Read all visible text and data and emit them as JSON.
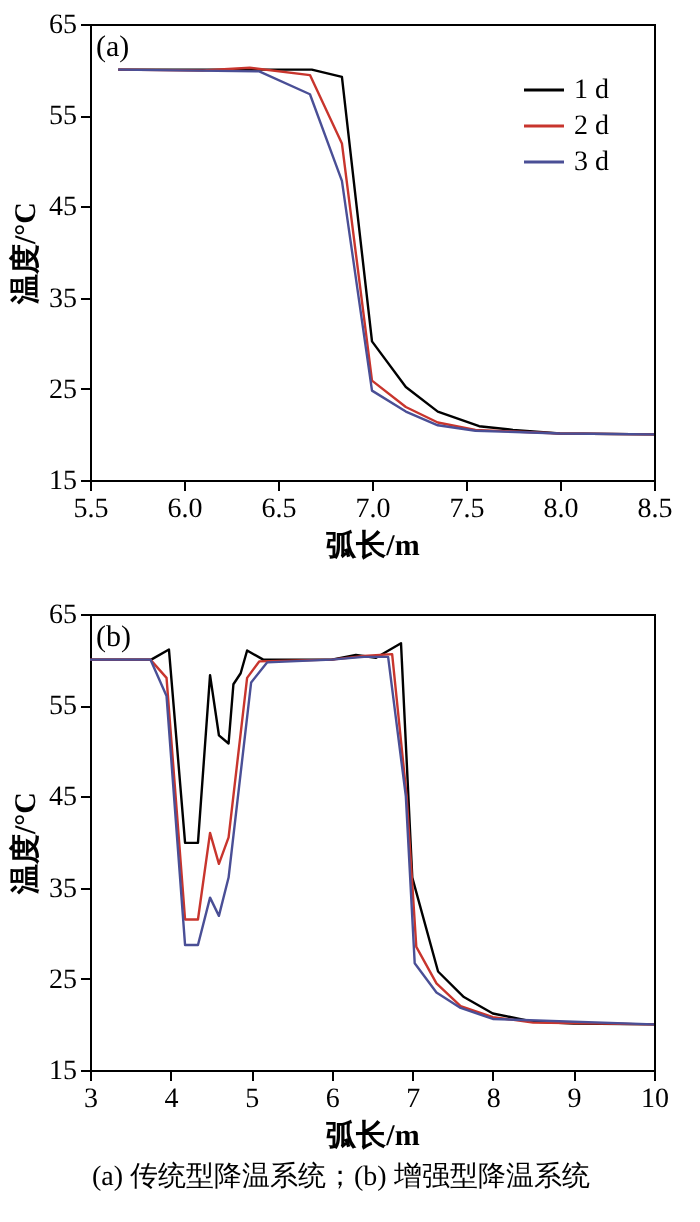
{
  "chart_data": [
    {
      "type": "line",
      "xlabel": "弧长/m",
      "ylabel": "温度/°C",
      "xlim": [
        5.5,
        8.5
      ],
      "xticks": [
        {
          "value": 5.5,
          "label": "5.5"
        },
        {
          "value": 6.0,
          "label": "6.0"
        },
        {
          "value": 6.5,
          "label": "6.5"
        },
        {
          "value": 7.0,
          "label": "7.0"
        },
        {
          "value": 7.5,
          "label": "7.5"
        },
        {
          "value": 8.0,
          "label": "8.0"
        },
        {
          "value": 8.5,
          "label": "8.5"
        }
      ],
      "ylim": [
        15,
        65
      ],
      "yticks": [
        15,
        25,
        35,
        45,
        55,
        65
      ],
      "grid": false,
      "legend": "top right",
      "line_style": "solid",
      "annotations": [
        "(a)"
      ],
      "series": [
        {
          "name": "1 d",
          "color": "#000000",
          "x": [
            5.65,
            6.0,
            6.4,
            6.68,
            6.84,
            7.0,
            7.18,
            7.35,
            7.57,
            7.75,
            8.0,
            8.5
          ],
          "values": [
            60,
            60,
            60,
            60,
            59.2,
            30.2,
            25.2,
            22.5,
            20.9,
            20.5,
            20.1,
            20
          ]
        },
        {
          "name": "2 d",
          "color": "#c8352d",
          "x": [
            5.65,
            6.1,
            6.35,
            6.67,
            6.84,
            7.0,
            7.18,
            7.35,
            7.55,
            8.0,
            8.5
          ],
          "values": [
            60,
            59.9,
            60.2,
            59.4,
            51.9,
            25.9,
            23.0,
            21.3,
            20.5,
            20.1,
            20
          ]
        },
        {
          "name": "3 d",
          "color": "#4a4f96",
          "x": [
            5.65,
            6.4,
            6.67,
            6.84,
            7.0,
            7.18,
            7.35,
            7.55,
            8.0,
            8.5
          ],
          "values": [
            60,
            59.8,
            57.3,
            47.8,
            24.8,
            22.5,
            21.0,
            20.4,
            20.1,
            20
          ]
        }
      ]
    },
    {
      "type": "line",
      "xlabel": "弧长/m",
      "ylabel": "温度/°C",
      "xlim": [
        3,
        10
      ],
      "xticks": [
        3,
        4,
        5,
        6,
        7,
        8,
        9,
        10
      ],
      "ylim": [
        15,
        65
      ],
      "yticks": [
        15,
        25,
        35,
        45,
        55,
        65
      ],
      "grid": false,
      "legend": "top right",
      "line_style": "solid",
      "annotations": [
        "(b)",
        "(a) 传统型降温系统；(b) 增强型降温系统"
      ],
      "series": [
        {
          "name": "1 d",
          "color": "#000000",
          "x": [
            3,
            3.76,
            3.98,
            4.18,
            4.34,
            4.49,
            4.6,
            4.72,
            4.78,
            4.87,
            4.95,
            5.15,
            6.0,
            6.3,
            6.55,
            6.86,
            7.0,
            7.32,
            7.64,
            8.0,
            8.5,
            9.0,
            10
          ],
          "values": [
            60,
            60,
            61.1,
            39.9,
            39.9,
            58.3,
            51.7,
            50.8,
            57.3,
            58.5,
            61.0,
            60,
            60,
            60.5,
            60.2,
            61.8,
            36.1,
            25.8,
            23.0,
            21.2,
            20.3,
            20.1,
            20
          ]
        },
        {
          "name": "2 d",
          "color": "#c8352d",
          "x": [
            3,
            3.75,
            3.95,
            4.18,
            4.34,
            4.49,
            4.6,
            4.72,
            4.95,
            5.1,
            6.0,
            6.4,
            6.75,
            6.93,
            7.05,
            7.3,
            7.6,
            8.0,
            8.5,
            10
          ],
          "values": [
            60,
            60,
            58,
            31.5,
            31.5,
            41.0,
            37.6,
            40.5,
            58,
            59.8,
            60,
            60.4,
            60.6,
            45,
            28.5,
            24.5,
            22.0,
            20.8,
            20.2,
            20
          ]
        },
        {
          "name": "3 d",
          "color": "#4a4f96",
          "x": [
            3,
            3.75,
            3.95,
            4.18,
            4.34,
            4.49,
            4.6,
            4.72,
            5.0,
            5.2,
            6.0,
            6.4,
            6.7,
            6.92,
            7.03,
            7.3,
            7.6,
            8.0,
            10
          ],
          "values": [
            60,
            60,
            56,
            28.7,
            28.7,
            33.9,
            31.9,
            36.1,
            57.5,
            59.7,
            60,
            60.3,
            60.3,
            45,
            26.7,
            23.5,
            21.8,
            20.6,
            20
          ]
        }
      ]
    }
  ]
}
